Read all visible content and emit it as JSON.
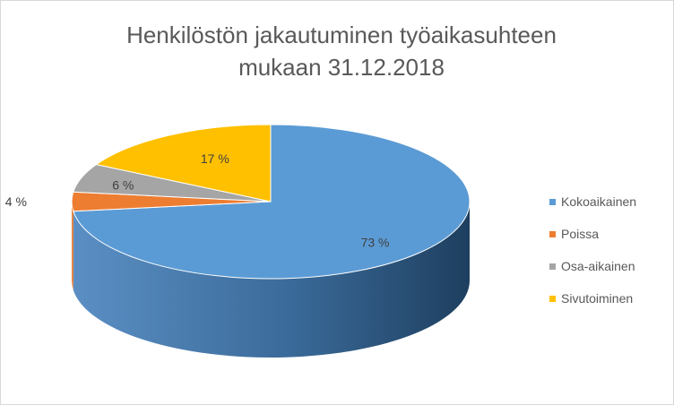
{
  "chart_data": {
    "type": "pie",
    "title_lines": [
      "Henkilöstön jakautuminen työaikasuhteen",
      "mukaan 31.12.2018"
    ],
    "slices": [
      {
        "name": "Kokoaikainen",
        "value": 73,
        "label": "73 %",
        "color": "#5b9bd5"
      },
      {
        "name": "Poissa",
        "value": 4,
        "label": "4 %",
        "color": "#ed7d31"
      },
      {
        "name": "Osa-aikainen",
        "value": 6,
        "label": "6 %",
        "color": "#a5a5a5"
      },
      {
        "name": "Sivutoiminen",
        "value": 17,
        "label": "17 %",
        "color": "#ffc000"
      }
    ],
    "legend_position": "right",
    "style": "3d-pie"
  }
}
